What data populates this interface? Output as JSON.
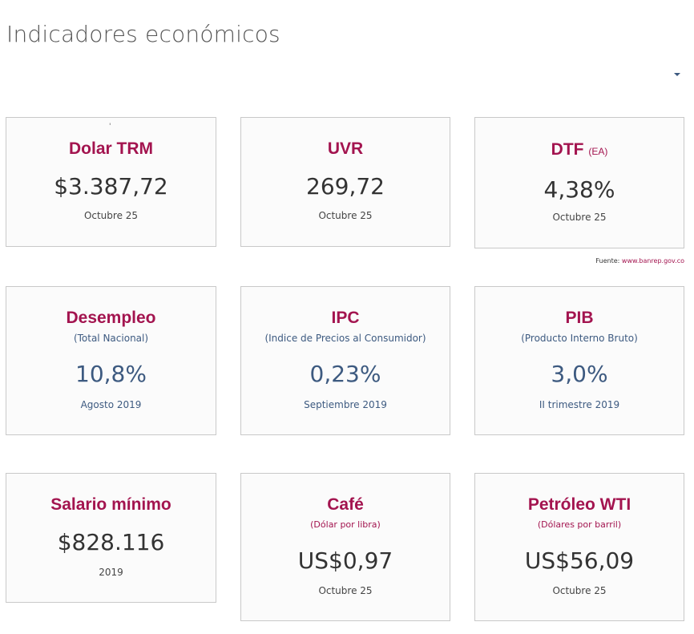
{
  "page": {
    "title": "Indicadores económicos"
  },
  "source": {
    "label": "Fuente:",
    "link_text": "www.banrep.gov.co"
  },
  "indicators": {
    "trm": {
      "title": "Dolar TRM",
      "value": "$3.387,72",
      "date": "Octubre 25",
      "mark": "'"
    },
    "uvr": {
      "title": "UVR",
      "value": "269,72",
      "date": "Octubre 25"
    },
    "dtf": {
      "title": "DTF",
      "title_suffix": "(EA)",
      "value": "4,38%",
      "date": "Octubre 25"
    },
    "desempleo": {
      "title": "Desempleo",
      "subtitle": "(Total Nacional)",
      "value": "10,8%",
      "date": "Agosto 2019"
    },
    "ipc": {
      "title": "IPC",
      "subtitle": "(Indice de Precios al Consumidor)",
      "value": "0,23%",
      "date": "Septiembre 2019"
    },
    "pib": {
      "title": "PIB",
      "subtitle": "(Producto Interno Bruto)",
      "value": "3,0%",
      "date": "II trimestre 2019"
    },
    "salario": {
      "title": "Salario mínimo",
      "value": "$828.116",
      "date": "2019"
    },
    "cafe": {
      "title": "Café",
      "subtitle": "(Dólar por libra)",
      "value": "US$0,97",
      "date": "Octubre 25"
    },
    "petroleo": {
      "title": "Petróleo WTI",
      "subtitle": "(Dólares por barril)",
      "value": "US$56,09",
      "date": "Octubre 25"
    }
  },
  "icons": {
    "dropdown": "caret-down-icon"
  },
  "colors": {
    "accent": "#a3144f",
    "value_blue": "#3d5a80",
    "value_dark": "#333333",
    "card_border": "#c9c9c9"
  }
}
